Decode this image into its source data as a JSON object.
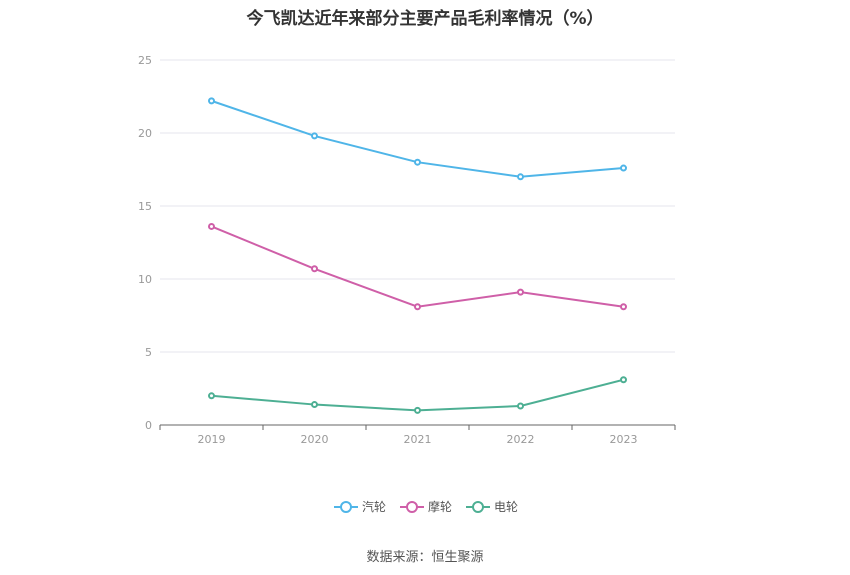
{
  "chart_data": {
    "type": "line",
    "title": "今飞凯达近年来部分主要产品毛利率情况（%）",
    "categories": [
      "2019",
      "2020",
      "2021",
      "2022",
      "2023"
    ],
    "ylim": [
      0,
      25
    ],
    "yticks": [
      0,
      5,
      10,
      15,
      20,
      25
    ],
    "grid": true,
    "legend_position": "bottom-center",
    "series": [
      {
        "name": "汽轮",
        "color": "#4fb5e8",
        "values": [
          22.2,
          19.8,
          18.0,
          17.0,
          17.6
        ]
      },
      {
        "name": "摩轮",
        "color": "#cf5fa8",
        "values": [
          13.6,
          10.7,
          8.1,
          9.1,
          8.1
        ]
      },
      {
        "name": "电轮",
        "color": "#4daf93",
        "values": [
          2.0,
          1.4,
          1.0,
          1.3,
          3.1
        ]
      }
    ]
  },
  "source": "数据来源：恒生聚源"
}
